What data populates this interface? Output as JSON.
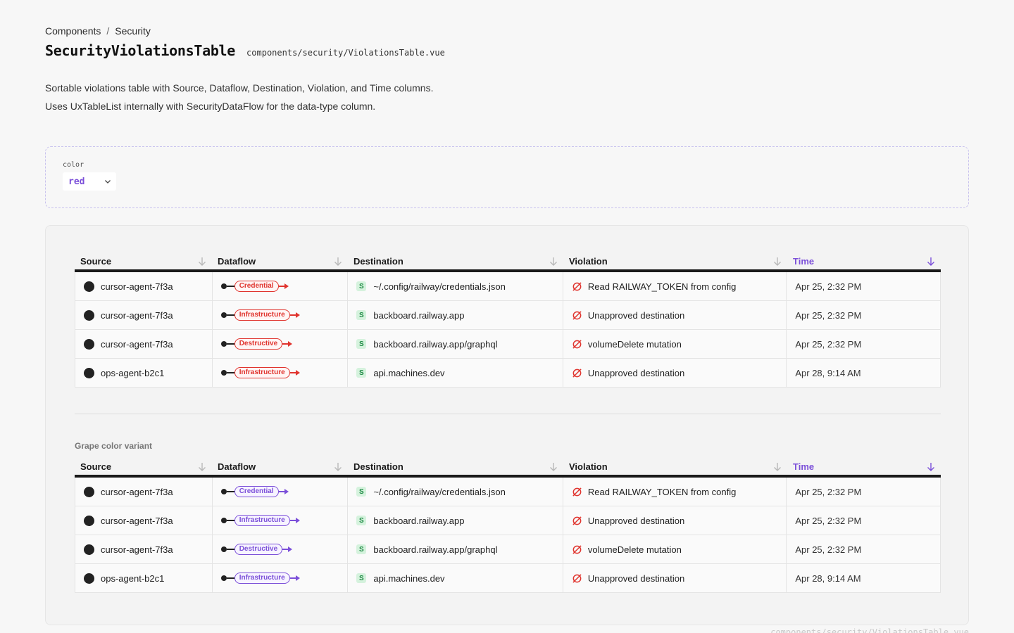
{
  "breadcrumb": {
    "root": "Components",
    "separator": "/",
    "current": "Security"
  },
  "header": {
    "title": "SecurityViolationsTable",
    "path": "components/security/ViolationsTable.vue"
  },
  "description": {
    "line1": "Sortable violations table with Source, Dataflow, Destination, Violation, and Time columns.",
    "line2": "Uses UxTableList internally with SecurityDataFlow for the data-type column."
  },
  "controls": {
    "label": "color",
    "value": "red",
    "options": [
      "red"
    ]
  },
  "columns": [
    "Source",
    "Dataflow",
    "Destination",
    "Violation",
    "Time"
  ],
  "sorted_column": "Time",
  "colors": {
    "red": "#e0342e",
    "grape": "#7b4fd9",
    "accent": "#7b4fd9",
    "success": "#1f8b45"
  },
  "tables": [
    {
      "variant": "red",
      "label": "",
      "rows": [
        {
          "source": "cursor-agent-7f3a",
          "dataflow": "Credential",
          "dest_badge": "S",
          "destination": "~/.config/railway/credentials.json",
          "violation": "Read RAILWAY_TOKEN from config",
          "time": "Apr 25, 2:32 PM"
        },
        {
          "source": "cursor-agent-7f3a",
          "dataflow": "Infrastructure",
          "dest_badge": "S",
          "destination": "backboard.railway.app",
          "violation": "Unapproved destination",
          "time": "Apr 25, 2:32 PM"
        },
        {
          "source": "cursor-agent-7f3a",
          "dataflow": "Destructive",
          "dest_badge": "S",
          "destination": "backboard.railway.app/graphql",
          "violation": "volumeDelete mutation",
          "time": "Apr 25, 2:32 PM"
        },
        {
          "source": "ops-agent-b2c1",
          "dataflow": "Infrastructure",
          "dest_badge": "S",
          "destination": "api.machines.dev",
          "violation": "Unapproved destination",
          "time": "Apr 28, 9:14 AM"
        }
      ]
    },
    {
      "variant": "grape",
      "label": "Grape color variant",
      "rows": [
        {
          "source": "cursor-agent-7f3a",
          "dataflow": "Credential",
          "dest_badge": "S",
          "destination": "~/.config/railway/credentials.json",
          "violation": "Read RAILWAY_TOKEN from config",
          "time": "Apr 25, 2:32 PM"
        },
        {
          "source": "cursor-agent-7f3a",
          "dataflow": "Infrastructure",
          "dest_badge": "S",
          "destination": "backboard.railway.app",
          "violation": "Unapproved destination",
          "time": "Apr 25, 2:32 PM"
        },
        {
          "source": "cursor-agent-7f3a",
          "dataflow": "Destructive",
          "dest_badge": "S",
          "destination": "backboard.railway.app/graphql",
          "violation": "volumeDelete mutation",
          "time": "Apr 25, 2:32 PM"
        },
        {
          "source": "ops-agent-b2c1",
          "dataflow": "Infrastructure",
          "dest_badge": "S",
          "destination": "api.machines.dev",
          "violation": "Unapproved destination",
          "time": "Apr 28, 9:14 AM"
        }
      ]
    }
  ],
  "footer": {
    "path": "components/security/ViolationsTable.vue"
  },
  "icons": {
    "sort": "arrow-down-icon",
    "source": "agent-dot-icon",
    "violation": "blocked-icon",
    "chevron": "chevron-down-icon"
  }
}
